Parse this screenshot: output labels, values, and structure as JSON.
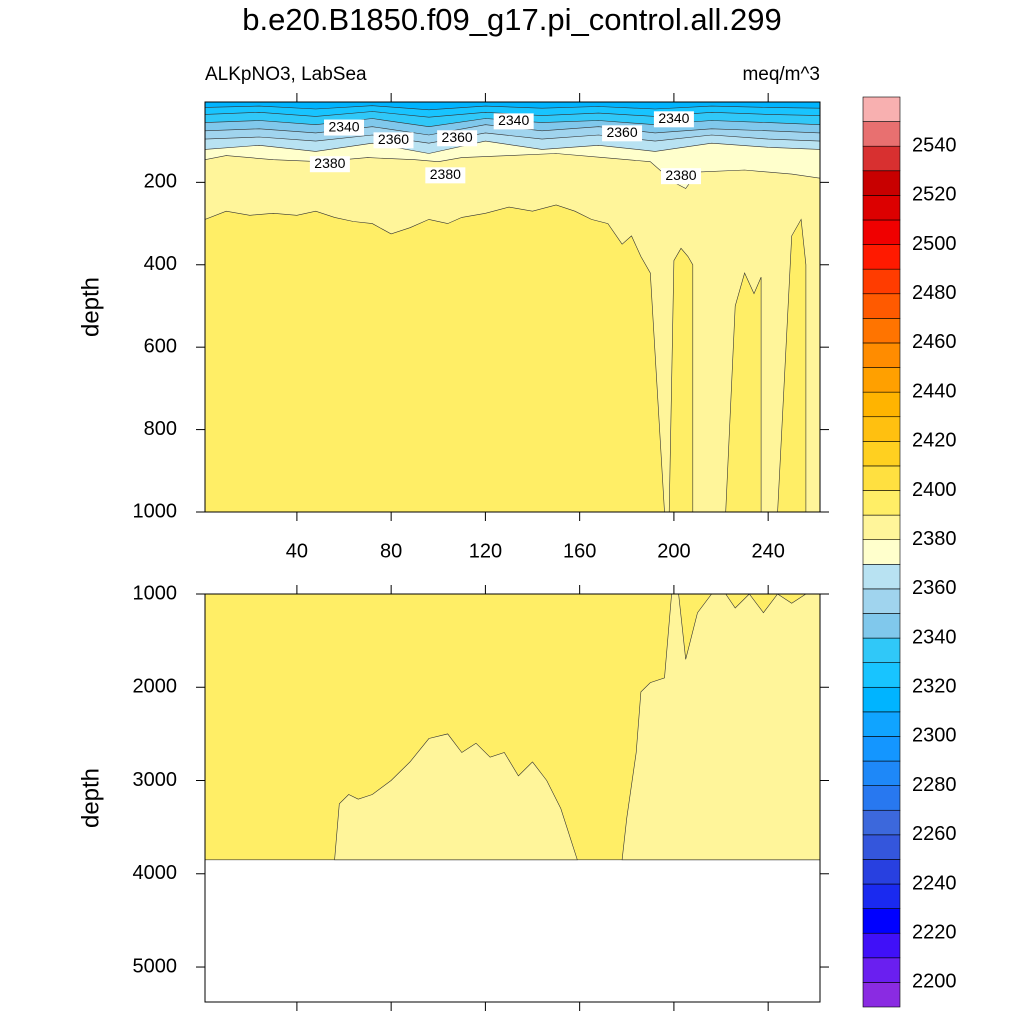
{
  "chart_data": [
    {
      "type": "contour",
      "title": "b.e20.B1850.f09_g17.pi_control.all.299",
      "subtitle_left": "ALKpNO3, LabSea",
      "subtitle_right": "meq/m^3",
      "ylabel": "depth",
      "xlim": [
        1,
        262
      ],
      "ylim": [
        5,
        1000
      ],
      "y_reversed": true,
      "xticks": [
        40,
        80,
        120,
        160,
        200,
        240
      ],
      "yticks": [
        200,
        400,
        600,
        800,
        1000
      ],
      "colorbar": {
        "levels": [
          2200,
          2210,
          2220,
          2230,
          2240,
          2250,
          2260,
          2270,
          2280,
          2290,
          2300,
          2310,
          2320,
          2330,
          2340,
          2350,
          2360,
          2370,
          2380,
          2390,
          2400,
          2410,
          2420,
          2430,
          2440,
          2450,
          2460,
          2470,
          2480,
          2490,
          2500,
          2510,
          2520,
          2530,
          2540,
          2550
        ],
        "colors": [
          "#8a2be2",
          "#6a1ff0",
          "#4010f8",
          "#0000ff",
          "#1a2af0",
          "#2840e0",
          "#3456dc",
          "#3c68dc",
          "#2878f0",
          "#1e88f8",
          "#1496ff",
          "#10a4ff",
          "#00b4ff",
          "#18c4ff",
          "#30c8f8",
          "#80c8ec",
          "#a0d4ee",
          "#b8e2f2",
          "#ffffcc",
          "#fff59a",
          "#ffee66",
          "#ffe040",
          "#ffd020",
          "#ffc010",
          "#ffb400",
          "#ffa000",
          "#ff8c00",
          "#ff7400",
          "#ff5a00",
          "#ff3c00",
          "#ff1a00",
          "#f00000",
          "#dc0000",
          "#c80000",
          "#d83030",
          "#e87070",
          "#f8b0b0"
        ],
        "labels": [
          2200,
          2220,
          2240,
          2260,
          2280,
          2300,
          2320,
          2340,
          2360,
          2380,
          2400,
          2420,
          2440,
          2460,
          2480,
          2500,
          2520,
          2540
        ]
      },
      "regions": [
        {
          "value": 2395,
          "x": [
            1,
            262,
            262,
            1
          ],
          "y": [
            5,
            5,
            1000,
            1000
          ]
        },
        {
          "value": 2385,
          "x": [
            1,
            262,
            262,
            196,
            190,
            186,
            182,
            178,
            172,
            165,
            158,
            150,
            140,
            130,
            120,
            110,
            104,
            96,
            88,
            80,
            72,
            64,
            56,
            48,
            40,
            30,
            20,
            10,
            1
          ],
          "y": [
            5,
            5,
            1000,
            1000,
            420,
            380,
            330,
            350,
            300,
            290,
            270,
            255,
            270,
            260,
            275,
            285,
            300,
            290,
            310,
            325,
            300,
            295,
            285,
            270,
            280,
            275,
            280,
            270,
            290
          ]
        },
        {
          "value": 2395,
          "x": [
            198,
            200,
            203,
            206,
            208,
            208
          ],
          "y": [
            1000,
            390,
            360,
            380,
            400,
            1000
          ]
        },
        {
          "value": 2395,
          "x": [
            222,
            226,
            230,
            234,
            237,
            237
          ],
          "y": [
            1000,
            500,
            420,
            470,
            430,
            1000
          ]
        },
        {
          "value": 2395,
          "x": [
            244,
            250,
            254,
            256,
            256
          ],
          "y": [
            1000,
            330,
            290,
            400,
            1000
          ]
        },
        {
          "value": 2375,
          "x": [
            1,
            262,
            262,
            250,
            240,
            230,
            210,
            205,
            200,
            190,
            170,
            150,
            130,
            110,
            100,
            90,
            70,
            50,
            30,
            10,
            1
          ],
          "y": [
            5,
            5,
            190,
            180,
            175,
            170,
            175,
            215,
            200,
            150,
            140,
            130,
            135,
            140,
            150,
            145,
            140,
            150,
            145,
            135,
            145
          ]
        },
        {
          "value": 2365,
          "x": [
            262,
            1,
            1,
            24,
            48,
            72,
            96,
            120,
            144,
            168,
            192,
            216,
            240,
            262
          ],
          "y": [
            5,
            5,
            120,
            110,
            125,
            105,
            130,
            100,
            120,
            110,
            125,
            105,
            115,
            120
          ]
        },
        {
          "value": 2355,
          "x": [
            262,
            1,
            1,
            24,
            48,
            72,
            96,
            120,
            144,
            168,
            192,
            216,
            240,
            262
          ],
          "y": [
            5,
            5,
            95,
            90,
            100,
            85,
            105,
            80,
            95,
            85,
            100,
            85,
            95,
            100
          ]
        },
        {
          "value": 2345,
          "x": [
            262,
            1,
            1,
            24,
            48,
            72,
            96,
            120,
            144,
            168,
            192,
            216,
            240,
            262
          ],
          "y": [
            5,
            5,
            75,
            70,
            80,
            65,
            85,
            60,
            75,
            65,
            80,
            70,
            75,
            80
          ]
        },
        {
          "value": 2335,
          "x": [
            262,
            1,
            1,
            24,
            48,
            72,
            96,
            120,
            144,
            168,
            192,
            216,
            240,
            262
          ],
          "y": [
            5,
            5,
            55,
            50,
            60,
            45,
            65,
            45,
            55,
            50,
            60,
            50,
            55,
            60
          ]
        },
        {
          "value": 2325,
          "x": [
            262,
            1,
            1,
            24,
            48,
            72,
            96,
            120,
            144,
            168,
            192,
            216,
            240,
            262
          ],
          "y": [
            5,
            5,
            35,
            30,
            40,
            28,
            42,
            30,
            38,
            32,
            40,
            30,
            35,
            38
          ]
        },
        {
          "value": 2315,
          "x": [
            262,
            1,
            1,
            24,
            48,
            72,
            96,
            120,
            144,
            168,
            192,
            216,
            240,
            262
          ],
          "y": [
            5,
            5,
            18,
            15,
            22,
            14,
            24,
            15,
            20,
            16,
            22,
            15,
            18,
            20
          ]
        }
      ],
      "annotations": [
        {
          "value": 2340,
          "x": 60,
          "y": 67
        },
        {
          "value": 2360,
          "x": 81,
          "y": 98
        },
        {
          "value": 2360,
          "x": 108,
          "y": 93
        },
        {
          "value": 2340,
          "x": 132,
          "y": 52
        },
        {
          "value": 2360,
          "x": 178,
          "y": 81
        },
        {
          "value": 2340,
          "x": 200,
          "y": 47
        },
        {
          "value": 2380,
          "x": 54,
          "y": 156
        },
        {
          "value": 2380,
          "x": 103,
          "y": 183
        },
        {
          "value": 2380,
          "x": 203,
          "y": 185
        }
      ]
    },
    {
      "type": "contour",
      "ylabel": "depth",
      "xlim": [
        1,
        262
      ],
      "ylim": [
        1000,
        5375
      ],
      "y_reversed": true,
      "yticks": [
        1000,
        2000,
        3000,
        4000,
        5000
      ],
      "regions": [
        {
          "value": 2395,
          "x": [
            1,
            262,
            262,
            1
          ],
          "y": [
            1000,
            1000,
            3850,
            3850
          ]
        },
        {
          "value": 2385,
          "x": [
            56,
            58,
            62,
            66,
            72,
            80,
            88,
            96,
            104,
            110,
            116,
            122,
            128,
            134,
            140,
            146,
            152,
            159
          ],
          "y": [
            3850,
            3250,
            3150,
            3200,
            3150,
            3000,
            2800,
            2550,
            2500,
            2700,
            2600,
            2750,
            2700,
            2950,
            2800,
            3000,
            3300,
            3850
          ]
        },
        {
          "value": 2385,
          "x": [
            178,
            180,
            184,
            186,
            190,
            196,
            199,
            202,
            205,
            210,
            216,
            222,
            226,
            232,
            238,
            244,
            250,
            256,
            262,
            262
          ],
          "y": [
            3850,
            3400,
            2700,
            2050,
            1950,
            1900,
            1000,
            1000,
            1700,
            1200,
            1000,
            1000,
            1150,
            1000,
            1200,
            1000,
            1100,
            1000,
            1000,
            3850
          ]
        }
      ]
    }
  ]
}
